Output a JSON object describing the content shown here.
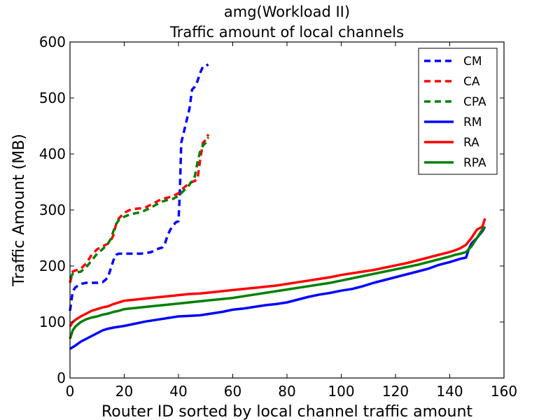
{
  "chart_data": {
    "type": "line",
    "title": "amg(Workload II)",
    "subtitle": "Traffic amount of local channels",
    "xlabel": "Router ID sorted by local channel traffic amount",
    "ylabel": "Traffic Amount (MB)",
    "xlim": [
      0,
      160
    ],
    "ylim": [
      0,
      600
    ],
    "xticks": [
      "0",
      "20",
      "40",
      "60",
      "80",
      "100",
      "120",
      "140",
      "160"
    ],
    "yticks": [
      "0",
      "100",
      "200",
      "300",
      "400",
      "500",
      "600"
    ],
    "legend_position": "top-right",
    "grid": false,
    "series": [
      {
        "name": "CM",
        "color": "#0000ff",
        "style": "dashed",
        "x": [
          0,
          1,
          2,
          3,
          4,
          6,
          8,
          10,
          12,
          13,
          14,
          15,
          16,
          17,
          18,
          20,
          22,
          24,
          26,
          28,
          30,
          32,
          34,
          35,
          36,
          37,
          38,
          39,
          40,
          40.5,
          41,
          42,
          43,
          44,
          45,
          46,
          47,
          48,
          49,
          50,
          51
        ],
        "y": [
          120,
          155,
          162,
          165,
          168,
          170,
          170,
          170,
          171,
          175,
          180,
          195,
          210,
          220,
          222,
          222,
          222,
          222,
          222,
          223,
          225,
          230,
          233,
          240,
          255,
          265,
          272,
          278,
          280,
          330,
          420,
          440,
          460,
          480,
          515,
          520,
          530,
          545,
          556,
          557,
          560
        ]
      },
      {
        "name": "CA",
        "color": "#ff0000",
        "style": "dashed",
        "x": [
          0,
          1,
          2,
          4,
          6,
          8,
          10,
          12,
          14,
          15,
          16,
          17,
          18,
          20,
          22,
          24,
          26,
          28,
          30,
          32,
          34,
          36,
          38,
          40,
          42,
          44,
          46,
          47,
          48,
          49,
          50,
          51
        ],
        "y": [
          170,
          190,
          192,
          195,
          205,
          220,
          230,
          235,
          240,
          245,
          255,
          275,
          285,
          295,
          300,
          302,
          303,
          305,
          310,
          315,
          320,
          322,
          325,
          330,
          340,
          348,
          352,
          355,
          390,
          420,
          425,
          435
        ]
      },
      {
        "name": "CPA",
        "color": "#008000",
        "style": "dashed",
        "x": [
          0,
          1,
          2,
          4,
          6,
          8,
          10,
          12,
          14,
          15,
          16,
          17,
          18,
          20,
          22,
          24,
          26,
          28,
          30,
          32,
          34,
          36,
          38,
          40,
          42,
          44,
          46,
          47,
          48,
          49,
          50,
          51
        ],
        "y": [
          178,
          186,
          188,
          190,
          198,
          210,
          222,
          230,
          240,
          248,
          262,
          275,
          282,
          288,
          292,
          294,
          296,
          300,
          305,
          310,
          315,
          318,
          320,
          325,
          335,
          345,
          360,
          385,
          405,
          415,
          420,
          430
        ]
      },
      {
        "name": "RM",
        "color": "#0000ff",
        "style": "solid",
        "x": [
          0,
          2,
          4,
          6,
          8,
          10,
          12,
          14,
          16,
          20,
          24,
          28,
          32,
          36,
          40,
          44,
          48,
          52,
          56,
          60,
          64,
          68,
          72,
          76,
          80,
          84,
          88,
          92,
          96,
          100,
          104,
          108,
          112,
          116,
          120,
          124,
          128,
          132,
          136,
          140,
          144,
          146,
          147,
          148,
          150,
          152,
          153
        ],
        "y": [
          52,
          58,
          65,
          70,
          75,
          80,
          85,
          88,
          90,
          93,
          97,
          101,
          104,
          107,
          110,
          111,
          112,
          115,
          118,
          122,
          124,
          127,
          130,
          132,
          135,
          140,
          145,
          149,
          152,
          156,
          159,
          164,
          170,
          175,
          180,
          185,
          190,
          195,
          202,
          207,
          213,
          215,
          230,
          240,
          250,
          262,
          270
        ]
      },
      {
        "name": "RA",
        "color": "#ff0000",
        "style": "solid",
        "x": [
          0,
          1,
          2,
          4,
          6,
          8,
          10,
          12,
          14,
          16,
          18,
          20,
          24,
          28,
          32,
          36,
          40,
          44,
          48,
          52,
          56,
          60,
          64,
          68,
          72,
          76,
          80,
          84,
          88,
          92,
          96,
          100,
          104,
          108,
          112,
          116,
          120,
          124,
          128,
          132,
          136,
          140,
          142,
          144,
          146,
          148,
          150,
          152,
          153
        ],
        "y": [
          92,
          100,
          104,
          110,
          115,
          120,
          123,
          126,
          128,
          132,
          135,
          138,
          140,
          142,
          144,
          146,
          148,
          150,
          151,
          153,
          155,
          157,
          159,
          161,
          163,
          165,
          168,
          171,
          174,
          177,
          180,
          184,
          187,
          190,
          193,
          197,
          201,
          205,
          210,
          215,
          220,
          225,
          228,
          232,
          238,
          250,
          265,
          270,
          285
        ]
      },
      {
        "name": "RPA",
        "color": "#008000",
        "style": "solid",
        "x": [
          0,
          1,
          2,
          4,
          6,
          8,
          10,
          12,
          14,
          16,
          18,
          20,
          24,
          28,
          32,
          36,
          40,
          44,
          48,
          52,
          56,
          60,
          64,
          68,
          72,
          76,
          80,
          84,
          88,
          92,
          96,
          100,
          104,
          108,
          112,
          116,
          120,
          124,
          128,
          132,
          136,
          140,
          142,
          144,
          146,
          148,
          150,
          152,
          153
        ],
        "y": [
          70,
          85,
          92,
          100,
          105,
          108,
          110,
          113,
          115,
          118,
          120,
          123,
          125,
          127,
          129,
          131,
          133,
          135,
          137,
          139,
          141,
          143,
          146,
          149,
          152,
          155,
          158,
          161,
          164,
          167,
          170,
          174,
          178,
          182,
          186,
          190,
          194,
          198,
          202,
          207,
          212,
          217,
          220,
          222,
          225,
          235,
          250,
          265,
          270
        ]
      }
    ]
  }
}
